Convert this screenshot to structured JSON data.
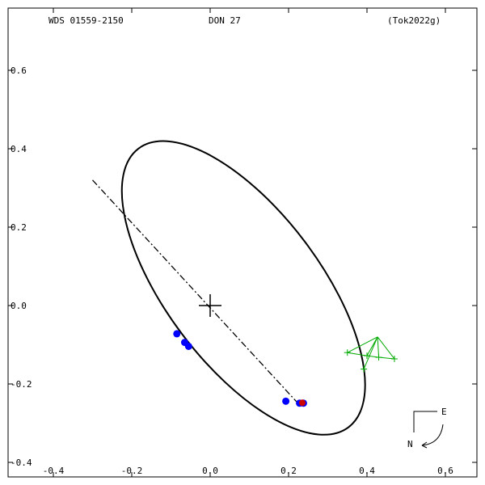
{
  "header": {
    "left": "WDS 01559-2150",
    "center": "DON  27",
    "right": "(Tok2022g)"
  },
  "compass": {
    "east_label": "E",
    "north_label": "N"
  },
  "chart_data": {
    "type": "scatter",
    "title": "",
    "xlabel": "",
    "ylabel": "",
    "xlim": [
      -0.5,
      0.7
    ],
    "ylim": [
      -0.45,
      0.75
    ],
    "x_ticks": [
      -0.4,
      -0.2,
      0.0,
      0.2,
      0.4,
      0.6
    ],
    "x_tick_labels": [
      "-0.4",
      "-0.2",
      "0.0",
      "0.2",
      "0.4",
      "0.6"
    ],
    "y_ticks": [
      0.6,
      0.4,
      0.2,
      0.0,
      -0.2,
      -0.4
    ],
    "y_tick_labels": [
      "0.6",
      "0.4",
      "0.2",
      "0.0",
      "-0.2",
      "-0.4"
    ],
    "primary_star": {
      "x": 0.0,
      "y": 0.0
    },
    "orbit": {
      "center": {
        "x": 0.085,
        "y": 0.045
      },
      "semi_major": 0.445,
      "semi_minor": 0.196,
      "rotation_deg": 53
    },
    "line_of_nodes": {
      "x1": -0.3,
      "y1": 0.32,
      "x2": 0.22,
      "y2": -0.245
    },
    "observations": [
      {
        "x": -0.085,
        "y": -0.072
      },
      {
        "x": -0.065,
        "y": -0.094
      },
      {
        "x": -0.055,
        "y": -0.104
      },
      {
        "x": 0.193,
        "y": -0.244
      },
      {
        "x": 0.228,
        "y": -0.249
      },
      {
        "x": 0.238,
        "y": -0.249
      }
    ],
    "highlighted_observation": {
      "x": 0.235,
      "y": -0.248
    },
    "residual_points": [
      {
        "x": 0.35,
        "y": -0.12
      },
      {
        "x": 0.4,
        "y": -0.128
      },
      {
        "x": 0.43,
        "y": -0.132
      },
      {
        "x": 0.47,
        "y": -0.136
      },
      {
        "x": 0.392,
        "y": -0.162
      }
    ],
    "residual_fan_origin": {
      "x": 0.427,
      "y": -0.08
    },
    "colors": {
      "orbit": "#000000",
      "observation": "#0000ff",
      "highlight": "#cc0000",
      "residual": "#00aa00"
    }
  }
}
